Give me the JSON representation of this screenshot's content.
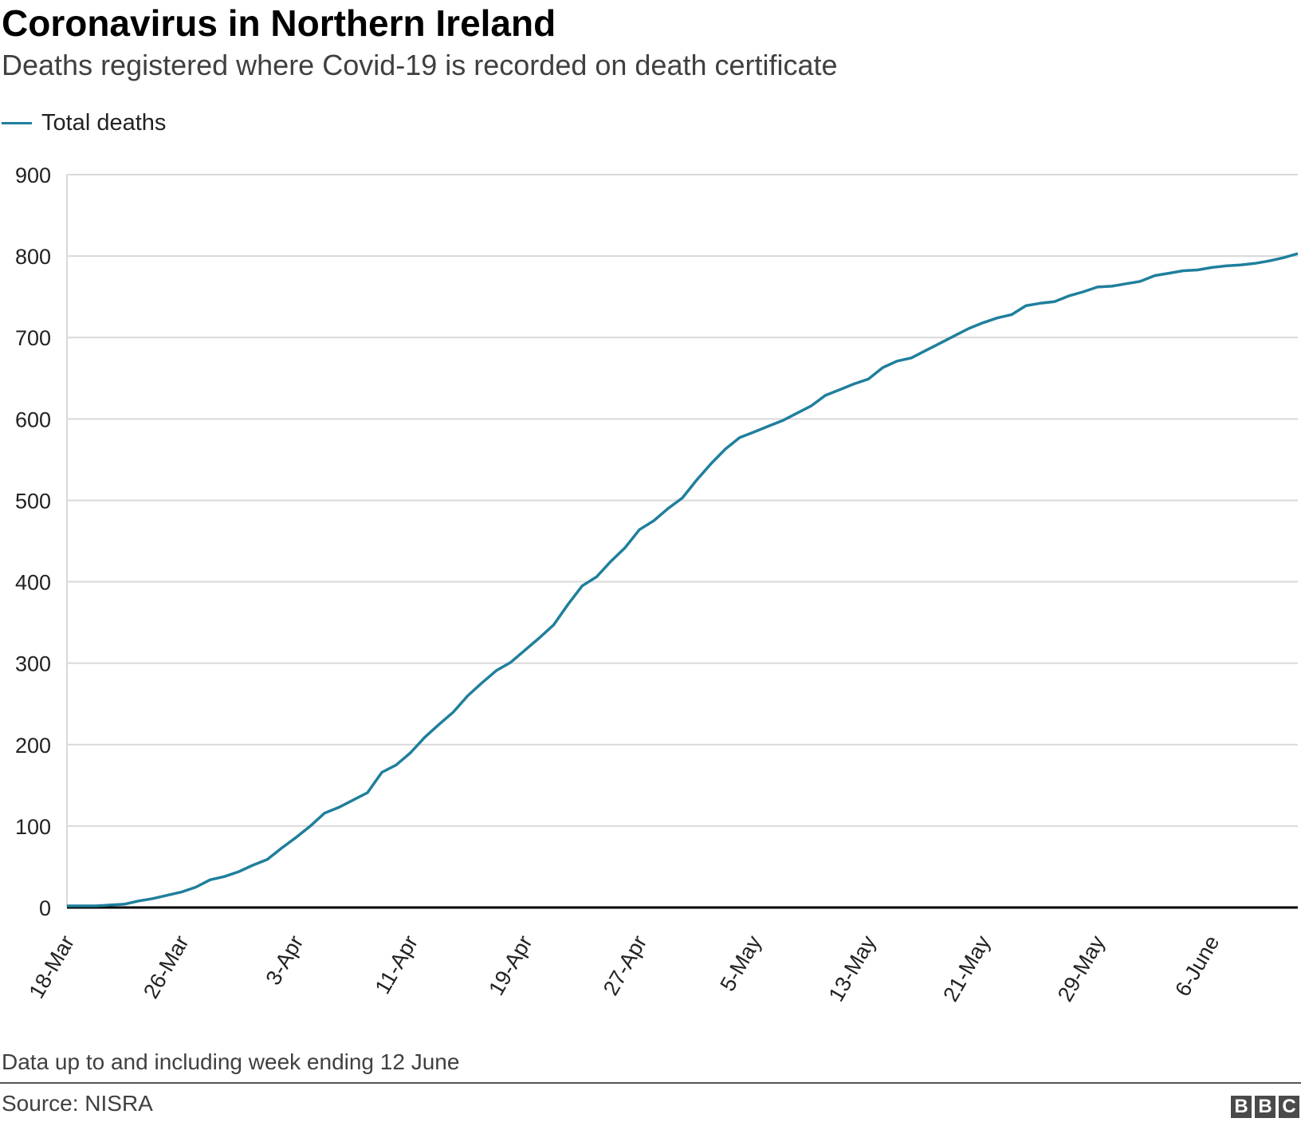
{
  "header": {
    "title": "Coronavirus in Northern Ireland",
    "subtitle": "Deaths registered where Covid-19 is recorded on death certificate"
  },
  "colors": {
    "series": "#1f7f9c",
    "grid": "#d9d9d9",
    "axis": "#000000",
    "bbc_box": "#4a4a4a"
  },
  "footer": {
    "note": "Data up to and including week ending 12 June",
    "source": "Source: NISRA",
    "logo_letters": [
      "B",
      "B",
      "C"
    ]
  },
  "chart_data": {
    "type": "line",
    "title": "Coronavirus in Northern Ireland",
    "subtitle": "Deaths registered where Covid-19 is recorded on death certificate",
    "xlabel": "",
    "ylabel": "",
    "ylim": [
      0,
      900
    ],
    "yticks": [
      0,
      100,
      200,
      300,
      400,
      500,
      600,
      700,
      800,
      900
    ],
    "grid": true,
    "legend_position": "top-left",
    "x_start": "18-Mar",
    "x_end": "12-June",
    "x_tick_labels": [
      "18-Mar",
      "26-Mar",
      "3-Apr",
      "11-Apr",
      "19-Apr",
      "27-Apr",
      "5-May",
      "13-May",
      "21-May",
      "29-May",
      "6-June"
    ],
    "series": [
      {
        "name": "Total deaths",
        "x": [
          "18-Mar",
          "19-Mar",
          "20-Mar",
          "21-Mar",
          "22-Mar",
          "23-Mar",
          "24-Mar",
          "25-Mar",
          "26-Mar",
          "27-Mar",
          "28-Mar",
          "29-Mar",
          "30-Mar",
          "31-Mar",
          "1-Apr",
          "2-Apr",
          "3-Apr",
          "4-Apr",
          "5-Apr",
          "6-Apr",
          "7-Apr",
          "8-Apr",
          "9-Apr",
          "10-Apr",
          "11-Apr",
          "12-Apr",
          "13-Apr",
          "14-Apr",
          "15-Apr",
          "16-Apr",
          "17-Apr",
          "18-Apr",
          "19-Apr",
          "20-Apr",
          "21-Apr",
          "22-Apr",
          "23-Apr",
          "24-Apr",
          "25-Apr",
          "26-Apr",
          "27-Apr",
          "28-Apr",
          "29-Apr",
          "30-Apr",
          "1-May",
          "2-May",
          "3-May",
          "4-May",
          "5-May",
          "6-May",
          "7-May",
          "8-May",
          "9-May",
          "10-May",
          "11-May",
          "12-May",
          "13-May",
          "14-May",
          "15-May",
          "16-May",
          "17-May",
          "18-May",
          "19-May",
          "20-May",
          "21-May",
          "22-May",
          "23-May",
          "24-May",
          "25-May",
          "26-May",
          "27-May",
          "28-May",
          "29-May",
          "30-May",
          "31-May",
          "1-June",
          "2-June",
          "3-June",
          "4-June",
          "5-June",
          "6-June",
          "7-June",
          "8-June",
          "9-June",
          "10-June",
          "11-June",
          "12-June"
        ],
        "values": [
          2,
          2,
          2,
          3,
          4,
          8,
          11,
          15,
          19,
          25,
          34,
          38,
          44,
          52,
          59,
          73,
          86,
          100,
          116,
          123,
          132,
          141,
          166,
          175,
          190,
          209,
          225,
          240,
          260,
          276,
          291,
          301,
          316,
          331,
          347,
          372,
          395,
          406,
          425,
          442,
          464,
          475,
          490,
          503,
          525,
          545,
          563,
          577,
          584,
          591,
          598,
          607,
          616,
          629,
          636,
          643,
          649,
          663,
          671,
          675,
          684,
          693,
          702,
          711,
          718,
          724,
          728,
          739,
          742,
          744,
          751,
          756,
          762,
          763,
          766,
          769,
          776,
          779,
          782,
          783,
          786,
          788,
          789,
          791,
          794,
          798,
          803
        ]
      }
    ]
  }
}
